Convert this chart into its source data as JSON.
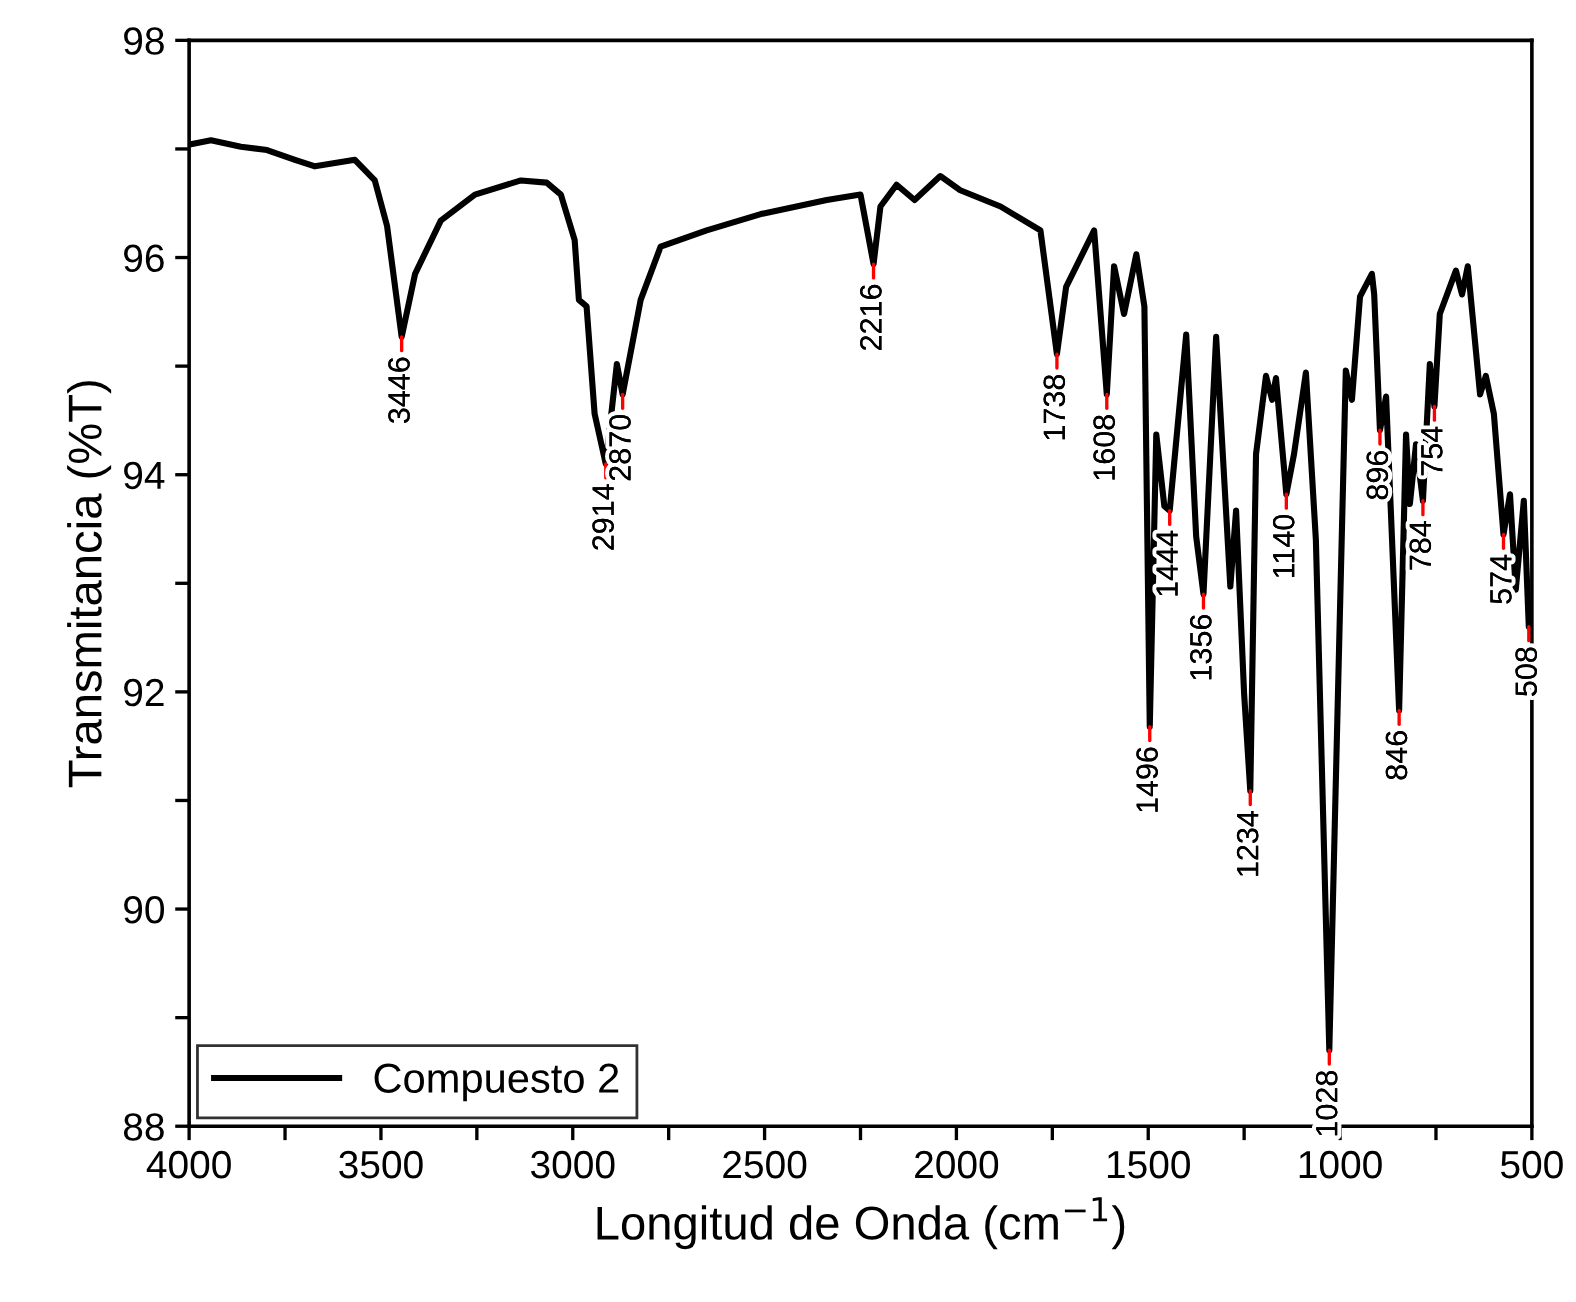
{
  "chart_data": {
    "type": "line",
    "xlabel": "Longitud de Onda (cm$^{−1}$)",
    "ylabel": "Transmitancia (%T)",
    "xlim": [
      4000,
      500
    ],
    "ylim": [
      88,
      98
    ],
    "xticks": [
      4000,
      {
        "value": 3750,
        "label": null
      },
      3500,
      {
        "value": 3250,
        "label": null
      },
      3000,
      {
        "value": 2750,
        "label": null
      },
      2500,
      {
        "value": 2250,
        "label": null
      },
      2000,
      {
        "value": 1750,
        "label": null
      },
      1500,
      {
        "value": 1250,
        "label": null
      },
      1000,
      {
        "value": 750,
        "label": null
      },
      500
    ],
    "yticks": [
      88,
      {
        "value": 89,
        "label": null
      },
      90,
      {
        "value": 91,
        "label": null
      },
      92,
      {
        "value": 93,
        "label": null
      },
      94,
      {
        "value": 95,
        "label": null
      },
      96,
      {
        "value": 97,
        "label": null
      },
      98
    ],
    "grid": false,
    "legend": "bottom left",
    "marker": "none",
    "line_style": "solid",
    "series": [
      {
        "name": "Compuesto 2",
        "color": "#000000",
        "x": [
          4000,
          3943,
          3865,
          3797,
          3724,
          3672,
          3568,
          3516,
          3484,
          3446,
          3411,
          3344,
          3255,
          3135,
          3068,
          3031,
          2995,
          2984,
          2964,
          2943,
          2914,
          2885,
          2870,
          2823,
          2771,
          2651,
          2510,
          2338,
          2250,
          2216,
          2198,
          2156,
          2109,
          2042,
          1990,
          1885,
          1781,
          1738,
          1714,
          1641,
          1608,
          1589,
          1563,
          1531,
          1510,
          1496,
          1479,
          1458,
          1444,
          1401,
          1375,
          1356,
          1323,
          1286,
          1271,
          1250,
          1234,
          1219,
          1193,
          1177,
          1167,
          1140,
          1120,
          1089,
          1063,
          1028,
          985,
          969,
          948,
          917,
          911,
          896,
          880,
          846,
          828,
          818,
          802,
          784,
          766,
          754,
          740,
          698,
          682,
          667,
          635,
          620,
          599,
          574,
          557,
          542,
          521,
          508,
          500
        ],
        "values": [
          97.04,
          97.08,
          97.02,
          96.99,
          96.9,
          96.84,
          96.9,
          96.71,
          96.29,
          95.27,
          95.85,
          96.34,
          96.58,
          96.71,
          96.69,
          96.58,
          96.16,
          95.61,
          95.55,
          94.56,
          94.1,
          95.02,
          94.74,
          95.61,
          96.1,
          96.25,
          96.4,
          96.53,
          96.58,
          95.94,
          96.47,
          96.67,
          96.53,
          96.75,
          96.62,
          96.47,
          96.25,
          95.11,
          95.73,
          96.25,
          94.74,
          95.92,
          95.48,
          96.03,
          95.55,
          91.68,
          94.37,
          93.71,
          93.67,
          95.29,
          93.43,
          92.9,
          95.27,
          92.97,
          93.67,
          91.98,
          91.09,
          94.19,
          94.91,
          94.69,
          94.89,
          93.82,
          94.19,
          94.94,
          93.4,
          88.7,
          94.96,
          94.69,
          95.64,
          95.85,
          95.66,
          94.41,
          94.72,
          91.83,
          94.37,
          93.73,
          94.28,
          93.76,
          95.02,
          94.63,
          95.48,
          95.88,
          95.66,
          95.92,
          94.74,
          94.91,
          94.56,
          93.45,
          93.82,
          92.94,
          93.76,
          92.6,
          92.7
        ]
      }
    ],
    "annotations": [
      {
        "text": "3446",
        "x": 3446,
        "y": 95.27
      },
      {
        "text": "2914",
        "x": 2914,
        "y": 94.1
      },
      {
        "text": "2870",
        "x": 2870,
        "y": 94.74
      },
      {
        "text": "2216",
        "x": 2216,
        "y": 95.94
      },
      {
        "text": "1738",
        "x": 1738,
        "y": 95.11
      },
      {
        "text": "1608",
        "x": 1608,
        "y": 94.74
      },
      {
        "text": "1496",
        "x": 1496,
        "y": 91.68
      },
      {
        "text": "1444",
        "x": 1444,
        "y": 93.67
      },
      {
        "text": "1356",
        "x": 1356,
        "y": 92.9
      },
      {
        "text": "1234",
        "x": 1234,
        "y": 91.09
      },
      {
        "text": "1140",
        "x": 1140,
        "y": 93.82
      },
      {
        "text": "1028",
        "x": 1028,
        "y": 88.7
      },
      {
        "text": "896",
        "x": 896,
        "y": 94.41
      },
      {
        "text": "846",
        "x": 846,
        "y": 91.83
      },
      {
        "text": "784",
        "x": 784,
        "y": 93.76
      },
      {
        "text": "754",
        "x": 754,
        "y": 94.63
      },
      {
        "text": "574",
        "x": 574,
        "y": 93.45
      },
      {
        "text": "508",
        "x": 508,
        "y": 92.6
      }
    ]
  }
}
